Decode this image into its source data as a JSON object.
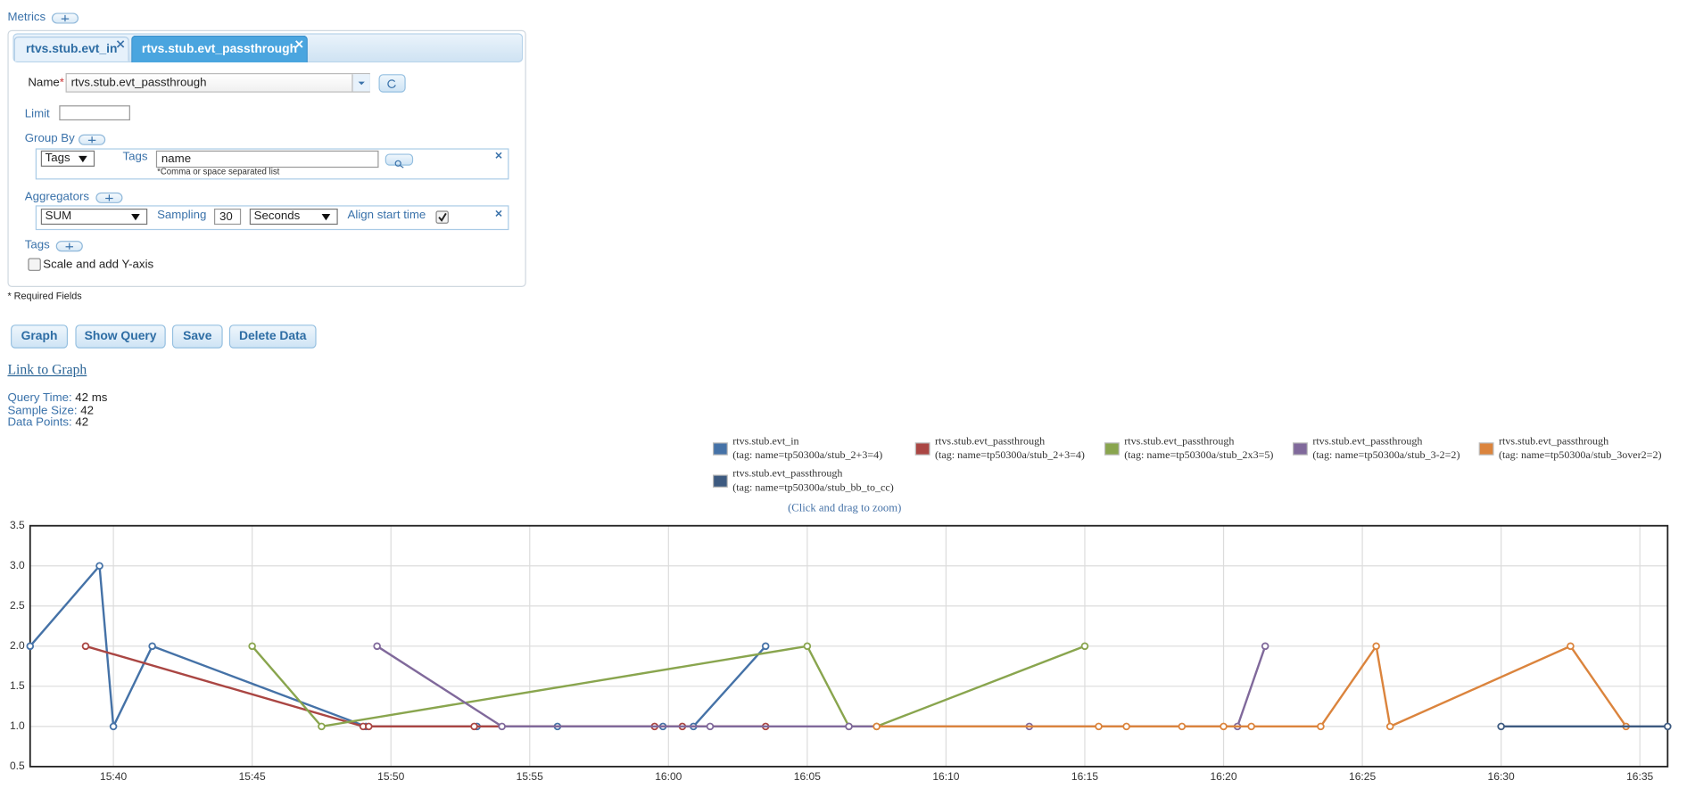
{
  "header": {
    "title": "Metrics"
  },
  "tabs": [
    "rtvs.stub.evt_in",
    "rtvs.stub.evt_passthrough"
  ],
  "form": {
    "name_label": "Name",
    "required_mark": "*",
    "name_value": "rtvs.stub.evt_passthrough",
    "limit_label": "Limit",
    "group_by_label": "Group By",
    "group_by_type": "Tags",
    "tags_label": "Tags",
    "tags_value": "name",
    "tags_hint": "*Comma or space separated list",
    "aggregators_label": "Aggregators",
    "aggregator": "SUM",
    "sampling_label": "Sampling",
    "sampling_value": 30,
    "sampling_unit": "Seconds",
    "align_label": "Align start time",
    "align_checked": true,
    "tags_section_label": "Tags",
    "scale_label": "Scale and add Y-axis",
    "scale_checked": false,
    "required_note": "* Required Fields"
  },
  "buttons": [
    "Graph",
    "Show Query",
    "Save",
    "Delete Data"
  ],
  "link": "Link to Graph",
  "stats": [
    {
      "label": "Query Time:",
      "value": "42 ms"
    },
    {
      "label": "Sample Size:",
      "value": "42"
    },
    {
      "label": "Data Points:",
      "value": "42"
    }
  ],
  "chart_data": {
    "type": "line",
    "hint": "(Click and drag to zoom)",
    "grid": true,
    "xlim": [
      937,
      996
    ],
    "xticks": [
      {
        "value": 940,
        "label": "15:40"
      },
      {
        "value": 945,
        "label": "15:45"
      },
      {
        "value": 950,
        "label": "15:50"
      },
      {
        "value": 955,
        "label": "15:55"
      },
      {
        "value": 960,
        "label": "16:00"
      },
      {
        "value": 965,
        "label": "16:05"
      },
      {
        "value": 970,
        "label": "16:10"
      },
      {
        "value": 975,
        "label": "16:15"
      },
      {
        "value": 980,
        "label": "16:20"
      },
      {
        "value": 985,
        "label": "16:25"
      },
      {
        "value": 990,
        "label": "16:30"
      },
      {
        "value": 995,
        "label": "16:35"
      }
    ],
    "ylim": [
      0.5,
      3.5
    ],
    "yticks": [
      0.5,
      {
        "value": 1,
        "label": "1.0"
      },
      1.5,
      {
        "value": 2,
        "label": "2.0"
      },
      2.5,
      {
        "value": 3,
        "label": "3.0"
      },
      3.5
    ],
    "series": [
      {
        "name": "rtvs.stub.evt_in",
        "tag": "(tag: name=tp50300a/stub_2+3=4)",
        "color": "#4572a7",
        "x": [
          937,
          939.5,
          940,
          941.4,
          949.1,
          953.1,
          956,
          959.8,
          960.9,
          963.5
        ],
        "values": [
          2,
          3,
          1,
          2,
          1,
          1,
          1,
          1,
          1,
          2
        ]
      },
      {
        "name": "rtvs.stub.evt_passthrough",
        "tag": "(tag: name=tp50300a/stub_2+3=4)",
        "color": "#aa4643",
        "x": [
          939,
          949,
          949.2,
          953,
          959.5,
          960.5,
          963.5
        ],
        "values": [
          2,
          1,
          1,
          1,
          1,
          1,
          1
        ]
      },
      {
        "name": "rtvs.stub.evt_passthrough",
        "tag": "(tag: name=tp50300a/stub_2x3=5)",
        "color": "#89a54e",
        "x": [
          945,
          947.5,
          965,
          966.5,
          967.5,
          975
        ],
        "values": [
          2,
          1,
          2,
          1,
          1,
          2
        ]
      },
      {
        "name": "rtvs.stub.evt_passthrough",
        "tag": "(tag: name=tp50300a/stub_3-2=2)",
        "color": "#80699b",
        "x": [
          949.5,
          954,
          961.5,
          966.5,
          973,
          980.5,
          981.5
        ],
        "values": [
          2,
          1,
          1,
          1,
          1,
          1,
          2
        ]
      },
      {
        "name": "rtvs.stub.evt_passthrough",
        "tag": "(tag: name=tp50300a/stub_3over2=2)",
        "color": "#db843d",
        "x": [
          967.5,
          975.5,
          976.5,
          978.5,
          980,
          981,
          983.5,
          985.5,
          986,
          992.5,
          994.5
        ],
        "values": [
          1,
          1,
          1,
          1,
          1,
          1,
          1,
          2,
          1,
          2,
          1
        ]
      },
      {
        "name": "rtvs.stub.evt_passthrough",
        "tag": "(tag: name=tp50300a/stub_bb_to_cc)",
        "color": "#3d5a80",
        "x": [
          990,
          996
        ],
        "values": [
          1,
          1
        ]
      }
    ]
  }
}
